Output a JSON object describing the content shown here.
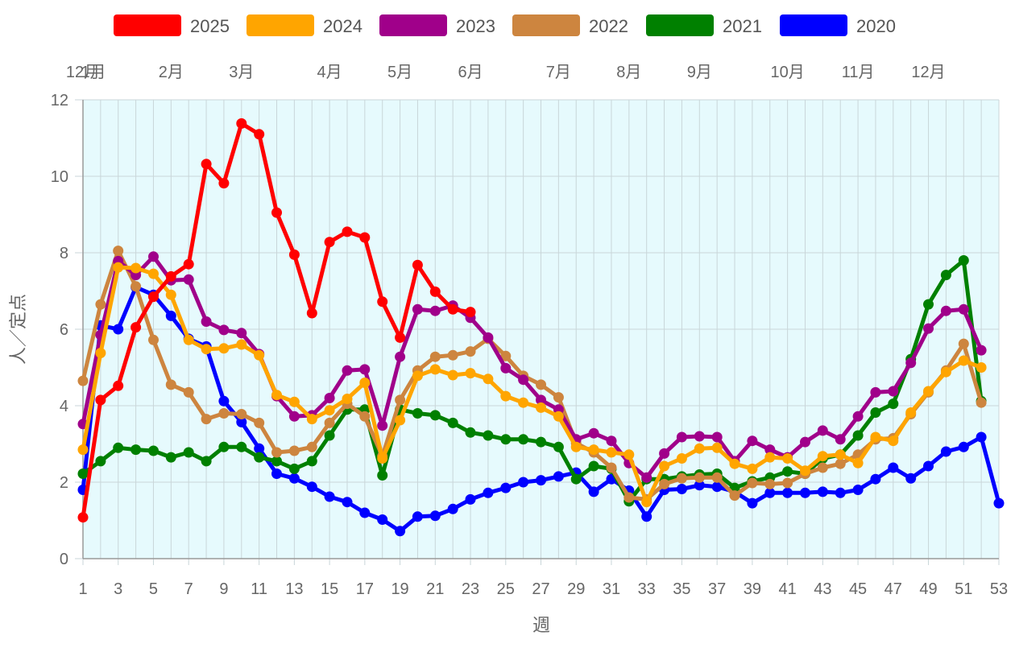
{
  "chart_data": {
    "type": "line",
    "title": "",
    "xlabel": "週",
    "ylabel": "人／定点",
    "xlim": [
      1,
      53
    ],
    "ylim": [
      0,
      12
    ],
    "y_ticks": [
      0,
      2,
      4,
      6,
      8,
      10,
      12
    ],
    "x_tick_labels": [
      "1",
      "3",
      "5",
      "7",
      "9",
      "11",
      "13",
      "15",
      "17",
      "19",
      "21",
      "23",
      "25",
      "27",
      "29",
      "31",
      "33",
      "35",
      "37",
      "39",
      "41",
      "43",
      "45",
      "47",
      "49",
      "51",
      "53"
    ],
    "month_labels": [
      {
        "label": "12月",
        "week": 1
      },
      {
        "label": "1月",
        "week": 1.6
      },
      {
        "label": "2月",
        "week": 6
      },
      {
        "label": "3月",
        "week": 10
      },
      {
        "label": "4月",
        "week": 15
      },
      {
        "label": "5月",
        "week": 19
      },
      {
        "label": "6月",
        "week": 23
      },
      {
        "label": "7月",
        "week": 28
      },
      {
        "label": "8月",
        "week": 32
      },
      {
        "label": "9月",
        "week": 36
      },
      {
        "label": "10月",
        "week": 41
      },
      {
        "label": "11月",
        "week": 45
      },
      {
        "label": "12月",
        "week": 49
      }
    ],
    "grid": true,
    "plot_background": "#e6fafd",
    "legend_position": "top",
    "series": [
      {
        "name": "2020",
        "color": "#0000ff",
        "values": [
          1.8,
          6.1,
          6.0,
          7.1,
          6.9,
          6.35,
          5.75,
          5.55,
          4.12,
          3.57,
          2.88,
          2.22,
          2.1,
          1.88,
          1.62,
          1.48,
          1.2,
          1.02,
          0.72,
          1.1,
          1.12,
          1.3,
          1.55,
          1.72,
          1.85,
          2.0,
          2.05,
          2.15,
          2.25,
          1.75,
          2.08,
          1.78,
          1.1,
          1.8,
          1.82,
          1.92,
          1.88,
          1.75,
          1.45,
          1.72,
          1.72,
          1.72,
          1.75,
          1.72,
          1.8,
          2.08,
          2.38,
          2.1,
          2.42,
          2.8,
          2.92,
          3.18,
          1.45
        ]
      },
      {
        "name": "2021",
        "color": "#008000",
        "values": [
          2.22,
          2.55,
          2.9,
          2.85,
          2.82,
          2.65,
          2.78,
          2.55,
          2.92,
          2.92,
          2.65,
          2.55,
          2.35,
          2.55,
          3.22,
          3.9,
          3.9,
          2.18,
          3.9,
          3.8,
          3.75,
          3.55,
          3.3,
          3.22,
          3.12,
          3.12,
          3.05,
          2.92,
          2.08,
          2.42,
          2.35,
          1.5,
          2.08,
          2.08,
          2.15,
          2.2,
          2.22,
          1.85,
          2.02,
          2.12,
          2.28,
          2.22,
          2.62,
          2.72,
          3.22,
          3.82,
          4.05,
          5.22,
          6.65,
          7.42,
          7.8,
          4.12
        ]
      },
      {
        "name": "2022",
        "color": "#cd853f",
        "values": [
          4.65,
          6.65,
          8.05,
          7.12,
          5.72,
          4.55,
          4.35,
          3.65,
          3.8,
          3.78,
          3.55,
          2.78,
          2.82,
          2.92,
          3.55,
          4.05,
          3.72,
          2.68,
          4.15,
          4.92,
          5.28,
          5.32,
          5.42,
          5.75,
          5.3,
          4.78,
          4.55,
          4.22,
          3.02,
          2.78,
          2.38,
          1.6,
          1.55,
          1.95,
          2.1,
          2.12,
          2.12,
          1.65,
          1.98,
          1.95,
          1.98,
          2.22,
          2.38,
          2.48,
          2.72,
          3.12,
          3.15,
          3.78,
          4.35,
          4.92,
          5.62,
          4.08
        ]
      },
      {
        "name": "2023",
        "color": "#a0008a",
        "values": [
          3.52,
          5.85,
          7.78,
          7.42,
          7.9,
          7.28,
          7.3,
          6.2,
          5.98,
          5.9,
          5.35,
          4.25,
          3.72,
          3.75,
          4.2,
          4.92,
          4.95,
          3.48,
          5.28,
          6.52,
          6.48,
          6.62,
          6.3,
          5.78,
          4.98,
          4.68,
          4.15,
          3.9,
          3.12,
          3.28,
          3.08,
          2.5,
          2.12,
          2.75,
          3.18,
          3.2,
          3.18,
          2.55,
          3.08,
          2.85,
          2.65,
          3.05,
          3.35,
          3.12,
          3.72,
          4.35,
          4.38,
          5.12,
          6.02,
          6.48,
          6.52,
          5.45
        ]
      },
      {
        "name": "2024",
        "color": "#ffa500",
        "values": [
          2.85,
          5.38,
          7.62,
          7.6,
          7.45,
          6.9,
          5.72,
          5.48,
          5.5,
          5.6,
          5.32,
          4.28,
          4.1,
          3.65,
          3.88,
          4.18,
          4.6,
          2.62,
          3.62,
          4.78,
          4.95,
          4.8,
          4.85,
          4.7,
          4.25,
          4.08,
          3.95,
          3.72,
          2.92,
          2.85,
          2.78,
          2.72,
          1.48,
          2.42,
          2.62,
          2.88,
          2.9,
          2.48,
          2.35,
          2.65,
          2.62,
          2.3,
          2.68,
          2.72,
          2.5,
          3.18,
          3.08,
          3.82,
          4.38,
          4.88,
          5.18,
          5.0
        ]
      },
      {
        "name": "2025",
        "color": "#ff0000",
        "values": [
          1.08,
          4.15,
          4.52,
          6.05,
          6.85,
          7.38,
          7.7,
          10.32,
          9.82,
          11.38,
          11.1,
          9.05,
          7.95,
          6.42,
          8.28,
          8.55,
          8.4,
          6.72,
          5.78,
          7.68,
          6.98,
          6.52,
          6.45
        ]
      }
    ]
  },
  "legend_order": [
    "2025",
    "2024",
    "2023",
    "2022",
    "2021",
    "2020"
  ]
}
